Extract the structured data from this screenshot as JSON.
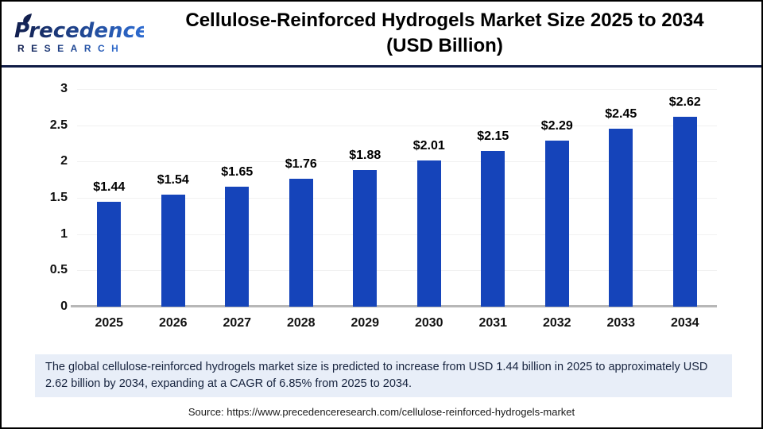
{
  "header": {
    "brand_name": "Precedence",
    "brand_sub": "RESEARCH",
    "title_line1": "Cellulose-Reinforced Hydrogels Market Size 2025 to 2034",
    "title_line2": "(USD Billion)"
  },
  "chart_data": {
    "type": "bar",
    "title": "Cellulose-Reinforced Hydrogels Market Size 2025 to 2034 (USD Billion)",
    "xlabel": "",
    "ylabel": "",
    "categories": [
      "2025",
      "2026",
      "2027",
      "2028",
      "2029",
      "2030",
      "2031",
      "2032",
      "2033",
      "2034"
    ],
    "values": [
      1.44,
      1.54,
      1.65,
      1.76,
      1.88,
      2.01,
      2.15,
      2.29,
      2.45,
      2.62
    ],
    "value_labels": [
      "$1.44",
      "$1.54",
      "$1.65",
      "$1.76",
      "$1.88",
      "$2.01",
      "$2.15",
      "$2.29",
      "$2.45",
      "$2.62"
    ],
    "ylim": [
      0,
      3
    ],
    "yticks": [
      0,
      0.5,
      1,
      1.5,
      2,
      2.5,
      3
    ],
    "ytick_labels": [
      "0",
      "0.5",
      "1",
      "1.5",
      "2",
      "2.5",
      "3"
    ],
    "grid": true,
    "legend": "none",
    "bar_color": "#1544ba"
  },
  "note": {
    "text": "The global cellulose-reinforced hydrogels market size is predicted to increase from USD 1.44 billion in 2025 to approximately USD 2.62 billion by 2034, expanding at a CAGR of 6.85% from 2025 to 2034."
  },
  "footer": {
    "source": "Source: https://www.precedenceresearch.com/cellulose-reinforced-hydrogels-market"
  },
  "colors": {
    "bar": "#1544ba",
    "divider": "#101c46",
    "note_bg": "#e8eef8",
    "note_text": "#16233e",
    "logo_navy": "#121f4e",
    "logo_blue": "#2f6fd6"
  }
}
